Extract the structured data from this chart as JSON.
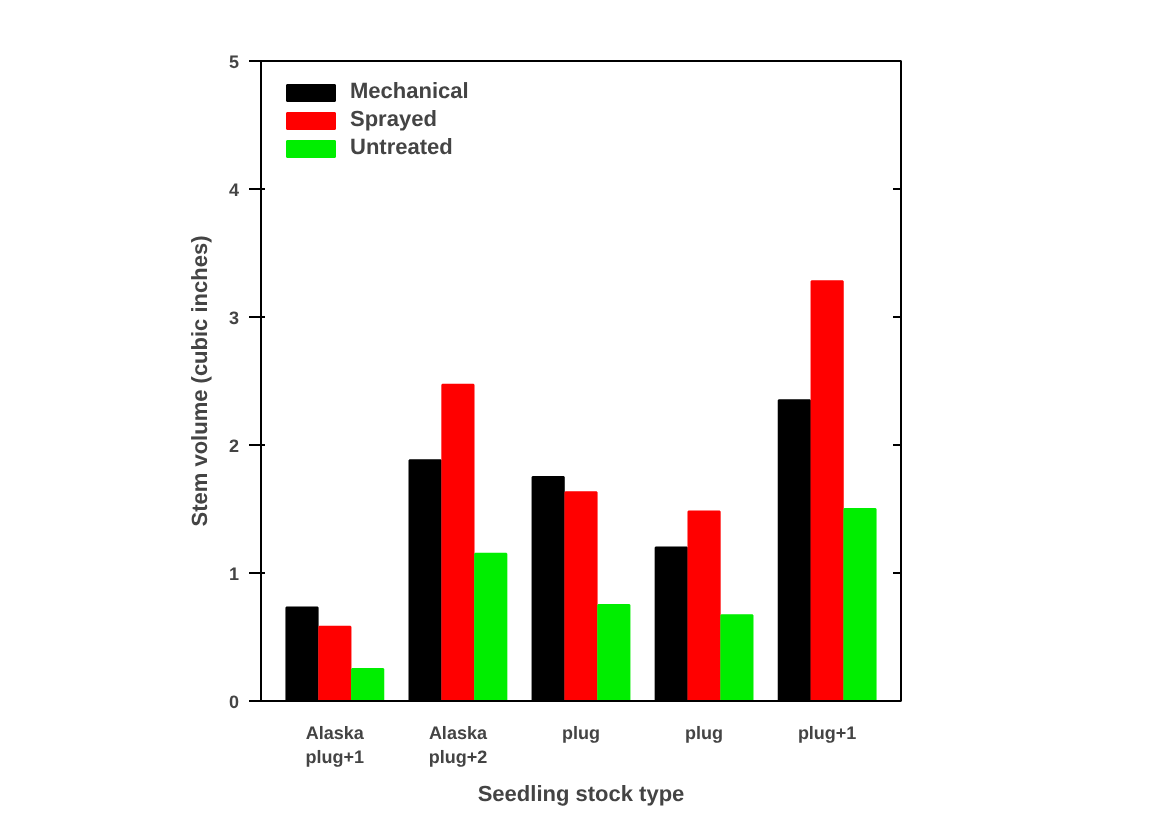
{
  "chart_data": {
    "type": "bar",
    "xlabel": "Seedling stock type",
    "ylabel": "Stem volume (cubic inches)",
    "categories": [
      "Alaska plug+1",
      "Alaska plug+2",
      "plug",
      "plug",
      "plug+1"
    ],
    "series": [
      {
        "name": "Mechanical",
        "color": "#000000",
        "values": [
          0.73,
          1.88,
          1.75,
          1.2,
          2.35
        ]
      },
      {
        "name": "Sprayed",
        "color": "#ff0000",
        "values": [
          0.58,
          2.47,
          1.63,
          1.48,
          3.28
        ]
      },
      {
        "name": "Untreated",
        "color": "#00ee00",
        "values": [
          0.25,
          1.15,
          0.75,
          0.67,
          1.5
        ]
      }
    ],
    "ylim": [
      0,
      5
    ],
    "yticks": [
      0,
      1,
      2,
      3,
      4,
      5
    ],
    "grid": false,
    "legend": "top left"
  }
}
